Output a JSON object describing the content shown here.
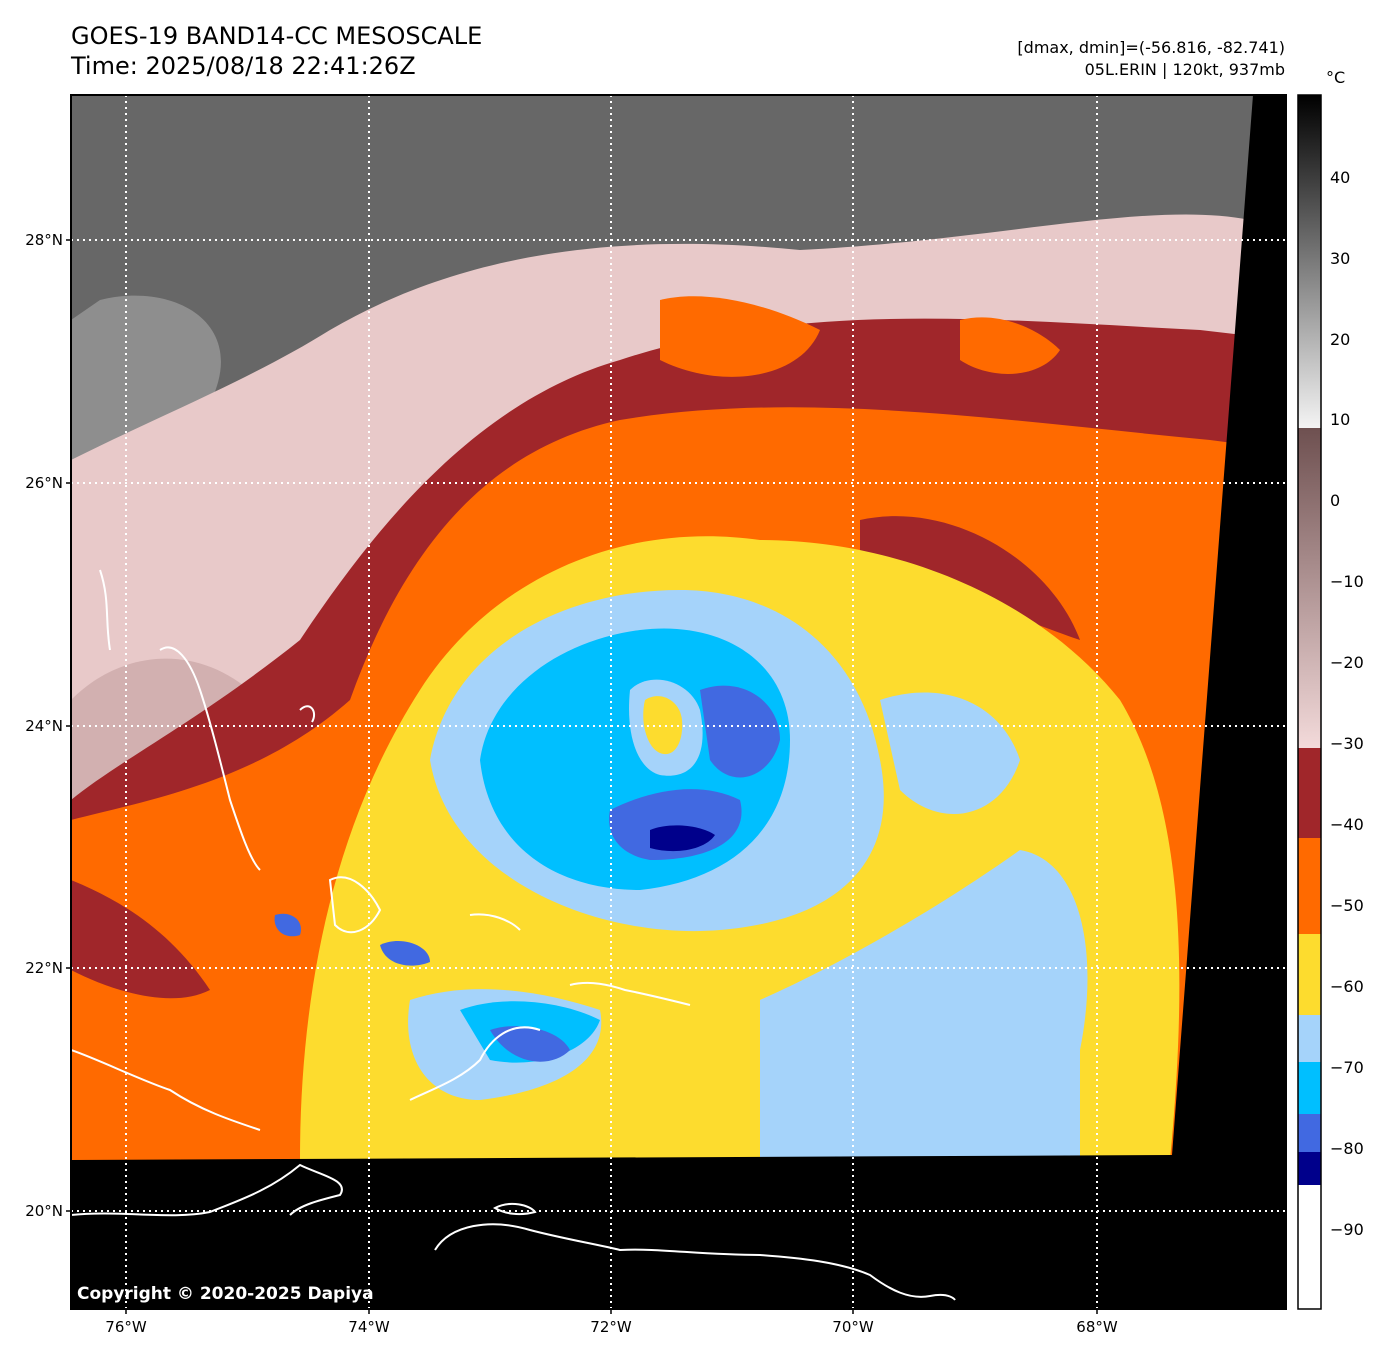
{
  "header": {
    "title_line1": "GOES-19 BAND14-CC MESOSCALE",
    "title_line2": "Time: 2025/08/18 22:41:26Z",
    "range_text": "[dmax, dmin]=(-56.816, -82.741)",
    "storm_text": "05L.ERIN | 120kt, 937mb"
  },
  "axes": {
    "lat_labels": [
      "28°N",
      "26°N",
      "24°N",
      "22°N",
      "20°N"
    ],
    "lon_labels": [
      "76°W",
      "74°W",
      "72°W",
      "70°W",
      "68°W"
    ]
  },
  "colorbar": {
    "unit": "°C",
    "tick_labels": [
      "40",
      "30",
      "20",
      "10",
      "0",
      "−10",
      "−20",
      "−30",
      "−40",
      "−50",
      "−60",
      "−70",
      "−80",
      "−90"
    ],
    "colors": {
      "warm_black": "#000000",
      "warm_grey": "#7a7a7a",
      "warm_white": "#f4f4f4",
      "brown": "#7a5c5c",
      "pink": "#f3dada",
      "dark_red": "#a0262a",
      "orange": "#ff6a00",
      "yellow": "#fddc2e",
      "light_blue": "#a5d3fa",
      "cyan": "#00bfff",
      "royal_blue": "#4169e1",
      "navy": "#00008b"
    }
  },
  "copyright": "Copyright © 2020-2025 Dapiya"
}
